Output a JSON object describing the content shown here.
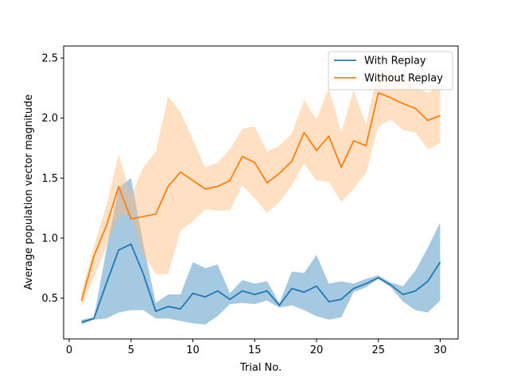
{
  "chart_data": {
    "type": "line",
    "title": "",
    "xlabel": "Trial No.",
    "ylabel": "Average population vector magnitude",
    "xlim": [
      -0.45,
      31.45
    ],
    "ylim": [
      0.16,
      2.6
    ],
    "x_ticks": [
      0,
      5,
      10,
      15,
      20,
      25,
      30
    ],
    "x_tick_labels": [
      "0",
      "5",
      "10",
      "15",
      "20",
      "25",
      "30"
    ],
    "y_ticks": [
      0.5,
      1.0,
      1.5,
      2.0,
      2.5
    ],
    "y_tick_labels": [
      "0.5",
      "1.0",
      "1.5",
      "2.0",
      "2.5"
    ],
    "grid": false,
    "legend_position": "top-right",
    "x": [
      1,
      2,
      3,
      4,
      5,
      6,
      7,
      8,
      9,
      10,
      11,
      12,
      13,
      14,
      15,
      16,
      17,
      18,
      19,
      20,
      21,
      22,
      23,
      24,
      25,
      26,
      27,
      28,
      29,
      30
    ],
    "series": [
      {
        "name": "With Replay",
        "color": "#1f77b4",
        "band_color": "#1f77b4",
        "values": [
          0.3,
          0.33,
          0.62,
          0.9,
          0.95,
          0.7,
          0.39,
          0.43,
          0.41,
          0.54,
          0.51,
          0.56,
          0.49,
          0.56,
          0.53,
          0.56,
          0.44,
          0.58,
          0.55,
          0.6,
          0.47,
          0.49,
          0.58,
          0.62,
          0.67,
          0.61,
          0.53,
          0.56,
          0.64,
          0.8
        ],
        "band_lower": [
          0.28,
          0.32,
          0.33,
          0.38,
          0.4,
          0.4,
          0.33,
          0.33,
          0.31,
          0.29,
          0.28,
          0.35,
          0.45,
          0.46,
          0.45,
          0.48,
          0.42,
          0.44,
          0.4,
          0.35,
          0.32,
          0.34,
          0.55,
          0.59,
          0.66,
          0.59,
          0.47,
          0.4,
          0.38,
          0.48
        ],
        "band_upper": [
          0.32,
          0.34,
          0.9,
          1.42,
          1.5,
          0.95,
          0.46,
          0.53,
          0.53,
          0.8,
          0.75,
          0.78,
          0.54,
          0.65,
          0.62,
          0.64,
          0.46,
          0.72,
          0.71,
          0.86,
          0.62,
          0.64,
          0.62,
          0.66,
          0.69,
          0.63,
          0.6,
          0.73,
          0.92,
          1.13
        ]
      },
      {
        "name": "Without Replay",
        "color": "#ff7f0e",
        "band_color": "#ffbb78",
        "values": [
          0.48,
          0.85,
          1.1,
          1.43,
          1.16,
          1.18,
          1.2,
          1.43,
          1.55,
          1.48,
          1.41,
          1.43,
          1.48,
          1.68,
          1.63,
          1.46,
          1.54,
          1.64,
          1.88,
          1.73,
          1.85,
          1.59,
          1.81,
          1.77,
          2.21,
          2.17,
          2.12,
          2.08,
          1.98,
          2.02
        ],
        "band_lower": [
          0.43,
          0.67,
          0.93,
          1.18,
          1.2,
          0.86,
          0.7,
          0.7,
          1.06,
          1.14,
          1.24,
          1.23,
          1.23,
          1.44,
          1.33,
          1.21,
          1.3,
          1.44,
          1.62,
          1.48,
          1.47,
          1.3,
          1.41,
          1.54,
          1.93,
          1.99,
          1.9,
          1.88,
          1.74,
          1.79
        ],
        "band_upper": [
          0.55,
          0.93,
          1.27,
          1.7,
          1.35,
          1.59,
          1.72,
          2.18,
          2.05,
          1.82,
          1.59,
          1.63,
          1.74,
          1.91,
          1.93,
          1.72,
          1.77,
          1.87,
          2.15,
          1.99,
          2.25,
          1.88,
          2.23,
          1.95,
          2.4,
          2.4,
          2.33,
          2.26,
          2.21,
          2.27
        ]
      }
    ]
  }
}
